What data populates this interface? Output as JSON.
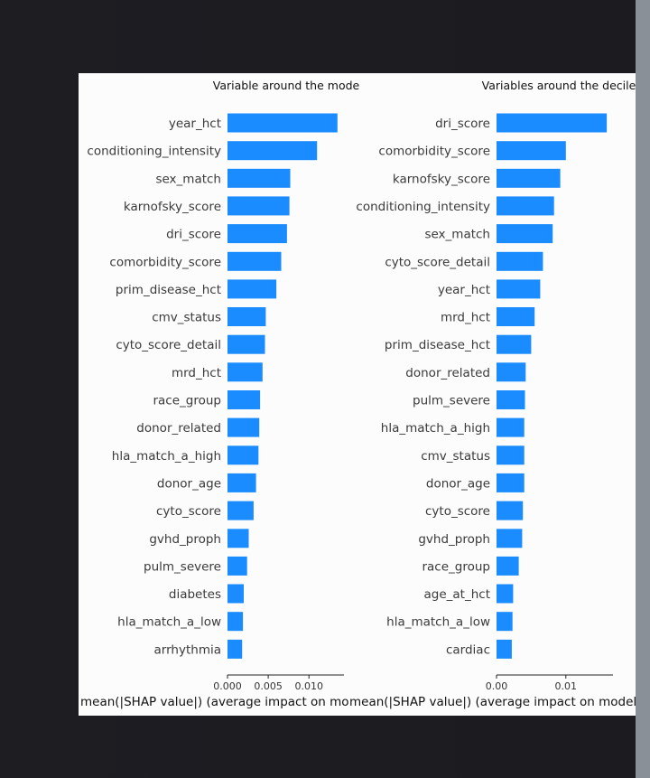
{
  "chart_data": [
    {
      "type": "bar",
      "orientation": "horizontal",
      "title": "Variable around the mode",
      "xlabel": "mean(|SHAP value|) (average impact on model output magnitude)",
      "xlim": [
        0,
        0.0143
      ],
      "xticks": [
        "0.000",
        "0.005",
        "0.010"
      ],
      "xtick_values": [
        0,
        0.005,
        0.01
      ],
      "bar_color": "#1a8cff",
      "categories": [
        "year_hct",
        "conditioning_intensity",
        "sex_match",
        "karnofsky_score",
        "dri_score",
        "comorbidity_score",
        "prim_disease_hct",
        "cmv_status",
        "cyto_score_detail",
        "mrd_hct",
        "race_group",
        "donor_related",
        "hla_match_a_high",
        "donor_age",
        "cyto_score",
        "gvhd_proph",
        "pulm_severe",
        "diabetes",
        "hla_match_a_low",
        "arrhythmia"
      ],
      "values": [
        0.0135,
        0.011,
        0.0077,
        0.0076,
        0.0073,
        0.0066,
        0.006,
        0.0047,
        0.0046,
        0.0043,
        0.004,
        0.0039,
        0.0038,
        0.0035,
        0.0032,
        0.0026,
        0.0024,
        0.002,
        0.0019,
        0.0018
      ]
    },
    {
      "type": "bar",
      "orientation": "horizontal",
      "title": "Variables around the decile",
      "xlabel": "mean(|SHAP value|) (average impact on model output magnitude)",
      "xlim": [
        0,
        0.0168
      ],
      "xticks": [
        "0.00",
        "0.01"
      ],
      "xtick_values": [
        0,
        0.01
      ],
      "bar_color": "#1a8cff",
      "categories": [
        "dri_score",
        "comorbidity_score",
        "karnofsky_score",
        "conditioning_intensity",
        "sex_match",
        "cyto_score_detail",
        "year_hct",
        "mrd_hct",
        "prim_disease_hct",
        "donor_related",
        "pulm_severe",
        "hla_match_a_high",
        "cmv_status",
        "donor_age",
        "cyto_score",
        "gvhd_proph",
        "race_group",
        "age_at_hct",
        "hla_match_a_low",
        "cardiac"
      ],
      "values": [
        0.0159,
        0.01,
        0.0092,
        0.0083,
        0.0081,
        0.0067,
        0.0063,
        0.0055,
        0.005,
        0.0042,
        0.0041,
        0.004,
        0.004,
        0.004,
        0.0038,
        0.0037,
        0.0032,
        0.0024,
        0.0023,
        0.0022
      ]
    }
  ]
}
